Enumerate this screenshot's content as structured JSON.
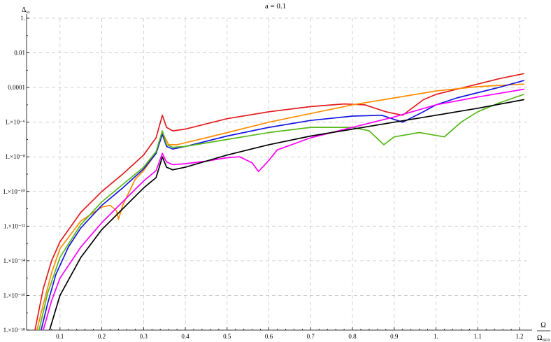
{
  "chart_data": {
    "type": "line",
    "title": "a = 0.1",
    "ylabel": "Δ",
    "ylabel_sub": "ω",
    "xlabel_num": "Ω",
    "xlabel_den": "Ω",
    "xlabel_den_sub": "isco",
    "xlim": [
      0.02,
      1.22
    ],
    "ylim_log10": [
      -18,
      0
    ],
    "y_scale": "log",
    "grid": true,
    "x_ticks": [
      0.1,
      0.2,
      0.3,
      0.4,
      0.5,
      0.6,
      0.7,
      0.8,
      0.9,
      1.0,
      1.1,
      1.2
    ],
    "x_tick_labels": [
      "0.1",
      "0.2",
      "0.3",
      "0.4",
      "0.5",
      "0.6",
      "0.7",
      "0.8",
      "0.9",
      "1.",
      "1.1",
      "1.2"
    ],
    "y_ticks_log10": [
      0,
      -2,
      -4,
      -6,
      -8,
      -10,
      -12,
      -14,
      -16,
      -18
    ],
    "y_tick_labels": [
      "1.",
      "0.01",
      "0.0001",
      "1.×10⁻⁶",
      "1.×10⁻⁸",
      "1.×10⁻¹⁰",
      "1.×10⁻¹²",
      "1.×10⁻¹⁴",
      "1.×10⁻¹⁶",
      "1.×10⁻¹⁸"
    ],
    "series": [
      {
        "color": "#e31a1c",
        "points_log10": [
          [
            0.04,
            -18
          ],
          [
            0.06,
            -15.6
          ],
          [
            0.08,
            -14.0
          ],
          [
            0.1,
            -12.9
          ],
          [
            0.15,
            -11.2
          ],
          [
            0.2,
            -10.0
          ],
          [
            0.25,
            -9.0
          ],
          [
            0.3,
            -7.9
          ],
          [
            0.33,
            -6.9
          ],
          [
            0.345,
            -5.6
          ],
          [
            0.355,
            -6.3
          ],
          [
            0.37,
            -6.5
          ],
          [
            0.4,
            -6.4
          ],
          [
            0.5,
            -5.8
          ],
          [
            0.6,
            -5.4
          ],
          [
            0.7,
            -5.1
          ],
          [
            0.78,
            -4.95
          ],
          [
            0.83,
            -5.0
          ],
          [
            0.88,
            -5.4
          ],
          [
            0.92,
            -5.6
          ],
          [
            0.97,
            -4.7
          ],
          [
            1.0,
            -4.4
          ],
          [
            1.05,
            -4.1
          ],
          [
            1.1,
            -3.8
          ],
          [
            1.15,
            -3.5
          ],
          [
            1.21,
            -3.2
          ]
        ]
      },
      {
        "color": "#ff8c00",
        "points_log10": [
          [
            0.045,
            -18
          ],
          [
            0.06,
            -16.5
          ],
          [
            0.08,
            -14.7
          ],
          [
            0.1,
            -13.3
          ],
          [
            0.15,
            -11.7
          ],
          [
            0.2,
            -10.9
          ],
          [
            0.22,
            -10.8
          ],
          [
            0.235,
            -11.1
          ],
          [
            0.24,
            -11.6
          ],
          [
            0.25,
            -10.8
          ],
          [
            0.28,
            -9.3
          ],
          [
            0.3,
            -8.8
          ],
          [
            0.33,
            -7.8
          ],
          [
            0.345,
            -6.6
          ],
          [
            0.36,
            -7.3
          ],
          [
            0.38,
            -7.3
          ],
          [
            0.45,
            -6.9
          ],
          [
            0.6,
            -6.0
          ],
          [
            0.7,
            -5.5
          ],
          [
            0.8,
            -5.0
          ],
          [
            0.9,
            -4.6
          ],
          [
            1.0,
            -4.2
          ],
          [
            1.1,
            -3.95
          ],
          [
            1.21,
            -3.8
          ]
        ]
      },
      {
        "color": "#1515e0",
        "points_log10": [
          [
            0.055,
            -18
          ],
          [
            0.07,
            -16.5
          ],
          [
            0.09,
            -14.8
          ],
          [
            0.12,
            -13.2
          ],
          [
            0.15,
            -12.1
          ],
          [
            0.2,
            -10.8
          ],
          [
            0.25,
            -9.8
          ],
          [
            0.3,
            -8.7
          ],
          [
            0.33,
            -7.8
          ],
          [
            0.345,
            -6.7
          ],
          [
            0.355,
            -7.4
          ],
          [
            0.37,
            -7.55
          ],
          [
            0.4,
            -7.4
          ],
          [
            0.5,
            -6.8
          ],
          [
            0.6,
            -6.3
          ],
          [
            0.7,
            -5.9
          ],
          [
            0.8,
            -5.65
          ],
          [
            0.87,
            -5.6
          ],
          [
            0.92,
            -6.0
          ],
          [
            0.97,
            -5.4
          ],
          [
            1.0,
            -5.0
          ],
          [
            1.05,
            -4.6
          ],
          [
            1.1,
            -4.3
          ],
          [
            1.15,
            -4.0
          ],
          [
            1.21,
            -3.6
          ]
        ]
      },
      {
        "color": "#57b817",
        "points_log10": [
          [
            0.05,
            -18
          ],
          [
            0.07,
            -15.9
          ],
          [
            0.1,
            -13.8
          ],
          [
            0.15,
            -11.9
          ],
          [
            0.2,
            -10.6
          ],
          [
            0.25,
            -9.6
          ],
          [
            0.3,
            -8.6
          ],
          [
            0.33,
            -7.7
          ],
          [
            0.345,
            -6.5
          ],
          [
            0.355,
            -7.3
          ],
          [
            0.37,
            -7.45
          ],
          [
            0.4,
            -7.4
          ],
          [
            0.5,
            -7.0
          ],
          [
            0.6,
            -6.6
          ],
          [
            0.7,
            -6.3
          ],
          [
            0.8,
            -6.3
          ],
          [
            0.84,
            -6.5
          ],
          [
            0.875,
            -7.3
          ],
          [
            0.9,
            -6.85
          ],
          [
            0.96,
            -6.6
          ],
          [
            1.02,
            -6.85
          ],
          [
            1.06,
            -6.0
          ],
          [
            1.1,
            -5.4
          ],
          [
            1.15,
            -4.9
          ],
          [
            1.21,
            -4.4
          ]
        ]
      },
      {
        "color": "#ff00ff",
        "points_log10": [
          [
            0.06,
            -18
          ],
          [
            0.08,
            -16.3
          ],
          [
            0.1,
            -15.0
          ],
          [
            0.15,
            -13.2
          ],
          [
            0.2,
            -11.8
          ],
          [
            0.25,
            -10.6
          ],
          [
            0.3,
            -9.4
          ],
          [
            0.33,
            -8.8
          ],
          [
            0.345,
            -7.8
          ],
          [
            0.355,
            -8.3
          ],
          [
            0.37,
            -8.45
          ],
          [
            0.4,
            -8.4
          ],
          [
            0.45,
            -8.25
          ],
          [
            0.5,
            -8.05
          ],
          [
            0.53,
            -8.0
          ],
          [
            0.56,
            -8.35
          ],
          [
            0.575,
            -8.85
          ],
          [
            0.6,
            -8.2
          ],
          [
            0.62,
            -7.6
          ],
          [
            0.7,
            -6.9
          ],
          [
            0.8,
            -6.3
          ],
          [
            0.9,
            -5.7
          ],
          [
            1.0,
            -5.0
          ],
          [
            1.1,
            -4.55
          ],
          [
            1.21,
            -4.1
          ]
        ]
      },
      {
        "color": "#000000",
        "points_log10": [
          [
            0.075,
            -18
          ],
          [
            0.1,
            -16.0
          ],
          [
            0.15,
            -13.8
          ],
          [
            0.2,
            -12.2
          ],
          [
            0.25,
            -11.0
          ],
          [
            0.3,
            -9.8
          ],
          [
            0.33,
            -9.2
          ],
          [
            0.345,
            -8.0
          ],
          [
            0.355,
            -8.6
          ],
          [
            0.37,
            -8.75
          ],
          [
            0.4,
            -8.6
          ],
          [
            0.5,
            -7.9
          ],
          [
            0.6,
            -7.3
          ],
          [
            0.7,
            -6.8
          ],
          [
            0.8,
            -6.4
          ],
          [
            0.9,
            -6.0
          ],
          [
            1.0,
            -5.6
          ],
          [
            1.1,
            -5.2
          ],
          [
            1.21,
            -4.7
          ]
        ]
      }
    ]
  }
}
